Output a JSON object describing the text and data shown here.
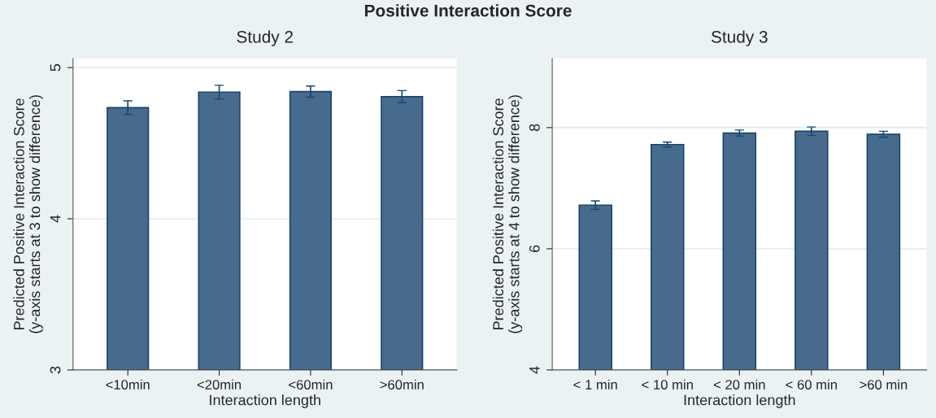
{
  "chart_data": [
    {
      "type": "bar",
      "title": "Positive Interaction Score",
      "subtitle": "Study 2",
      "xlabel": "Interaction length",
      "ylabel": "Predicted Positive Interaction Score\n(y-axis starts at 3 to show difference)",
      "categories": [
        "<10min",
        "<20min",
        "<60min",
        ">60min"
      ],
      "series": [
        {
          "color": "#476b8c",
          "values": [
            4.735,
            4.838,
            4.841,
            4.808
          ],
          "errors": [
            0.045,
            0.045,
            0.037,
            0.04
          ]
        }
      ],
      "ylim": [
        3,
        5.06
      ],
      "yticks": [
        3,
        4,
        5
      ],
      "grid": "y"
    },
    {
      "type": "bar",
      "subtitle": "Study 3",
      "xlabel": "Interaction length",
      "ylabel": "Predicted Positive Interaction Score\n(y-axis starts at 4 to show difference)",
      "categories": [
        "< 1 min",
        "< 10 min",
        "< 20 min",
        "< 60 min",
        ">60 min"
      ],
      "series": [
        {
          "color": "#476b8c",
          "values": [
            6.72,
            7.72,
            7.91,
            7.94,
            7.89
          ],
          "errors": [
            0.07,
            0.04,
            0.05,
            0.07,
            0.05
          ]
        }
      ],
      "ylim": [
        4,
        9.14
      ],
      "yticks": [
        4,
        6,
        8
      ],
      "grid": "y"
    }
  ]
}
